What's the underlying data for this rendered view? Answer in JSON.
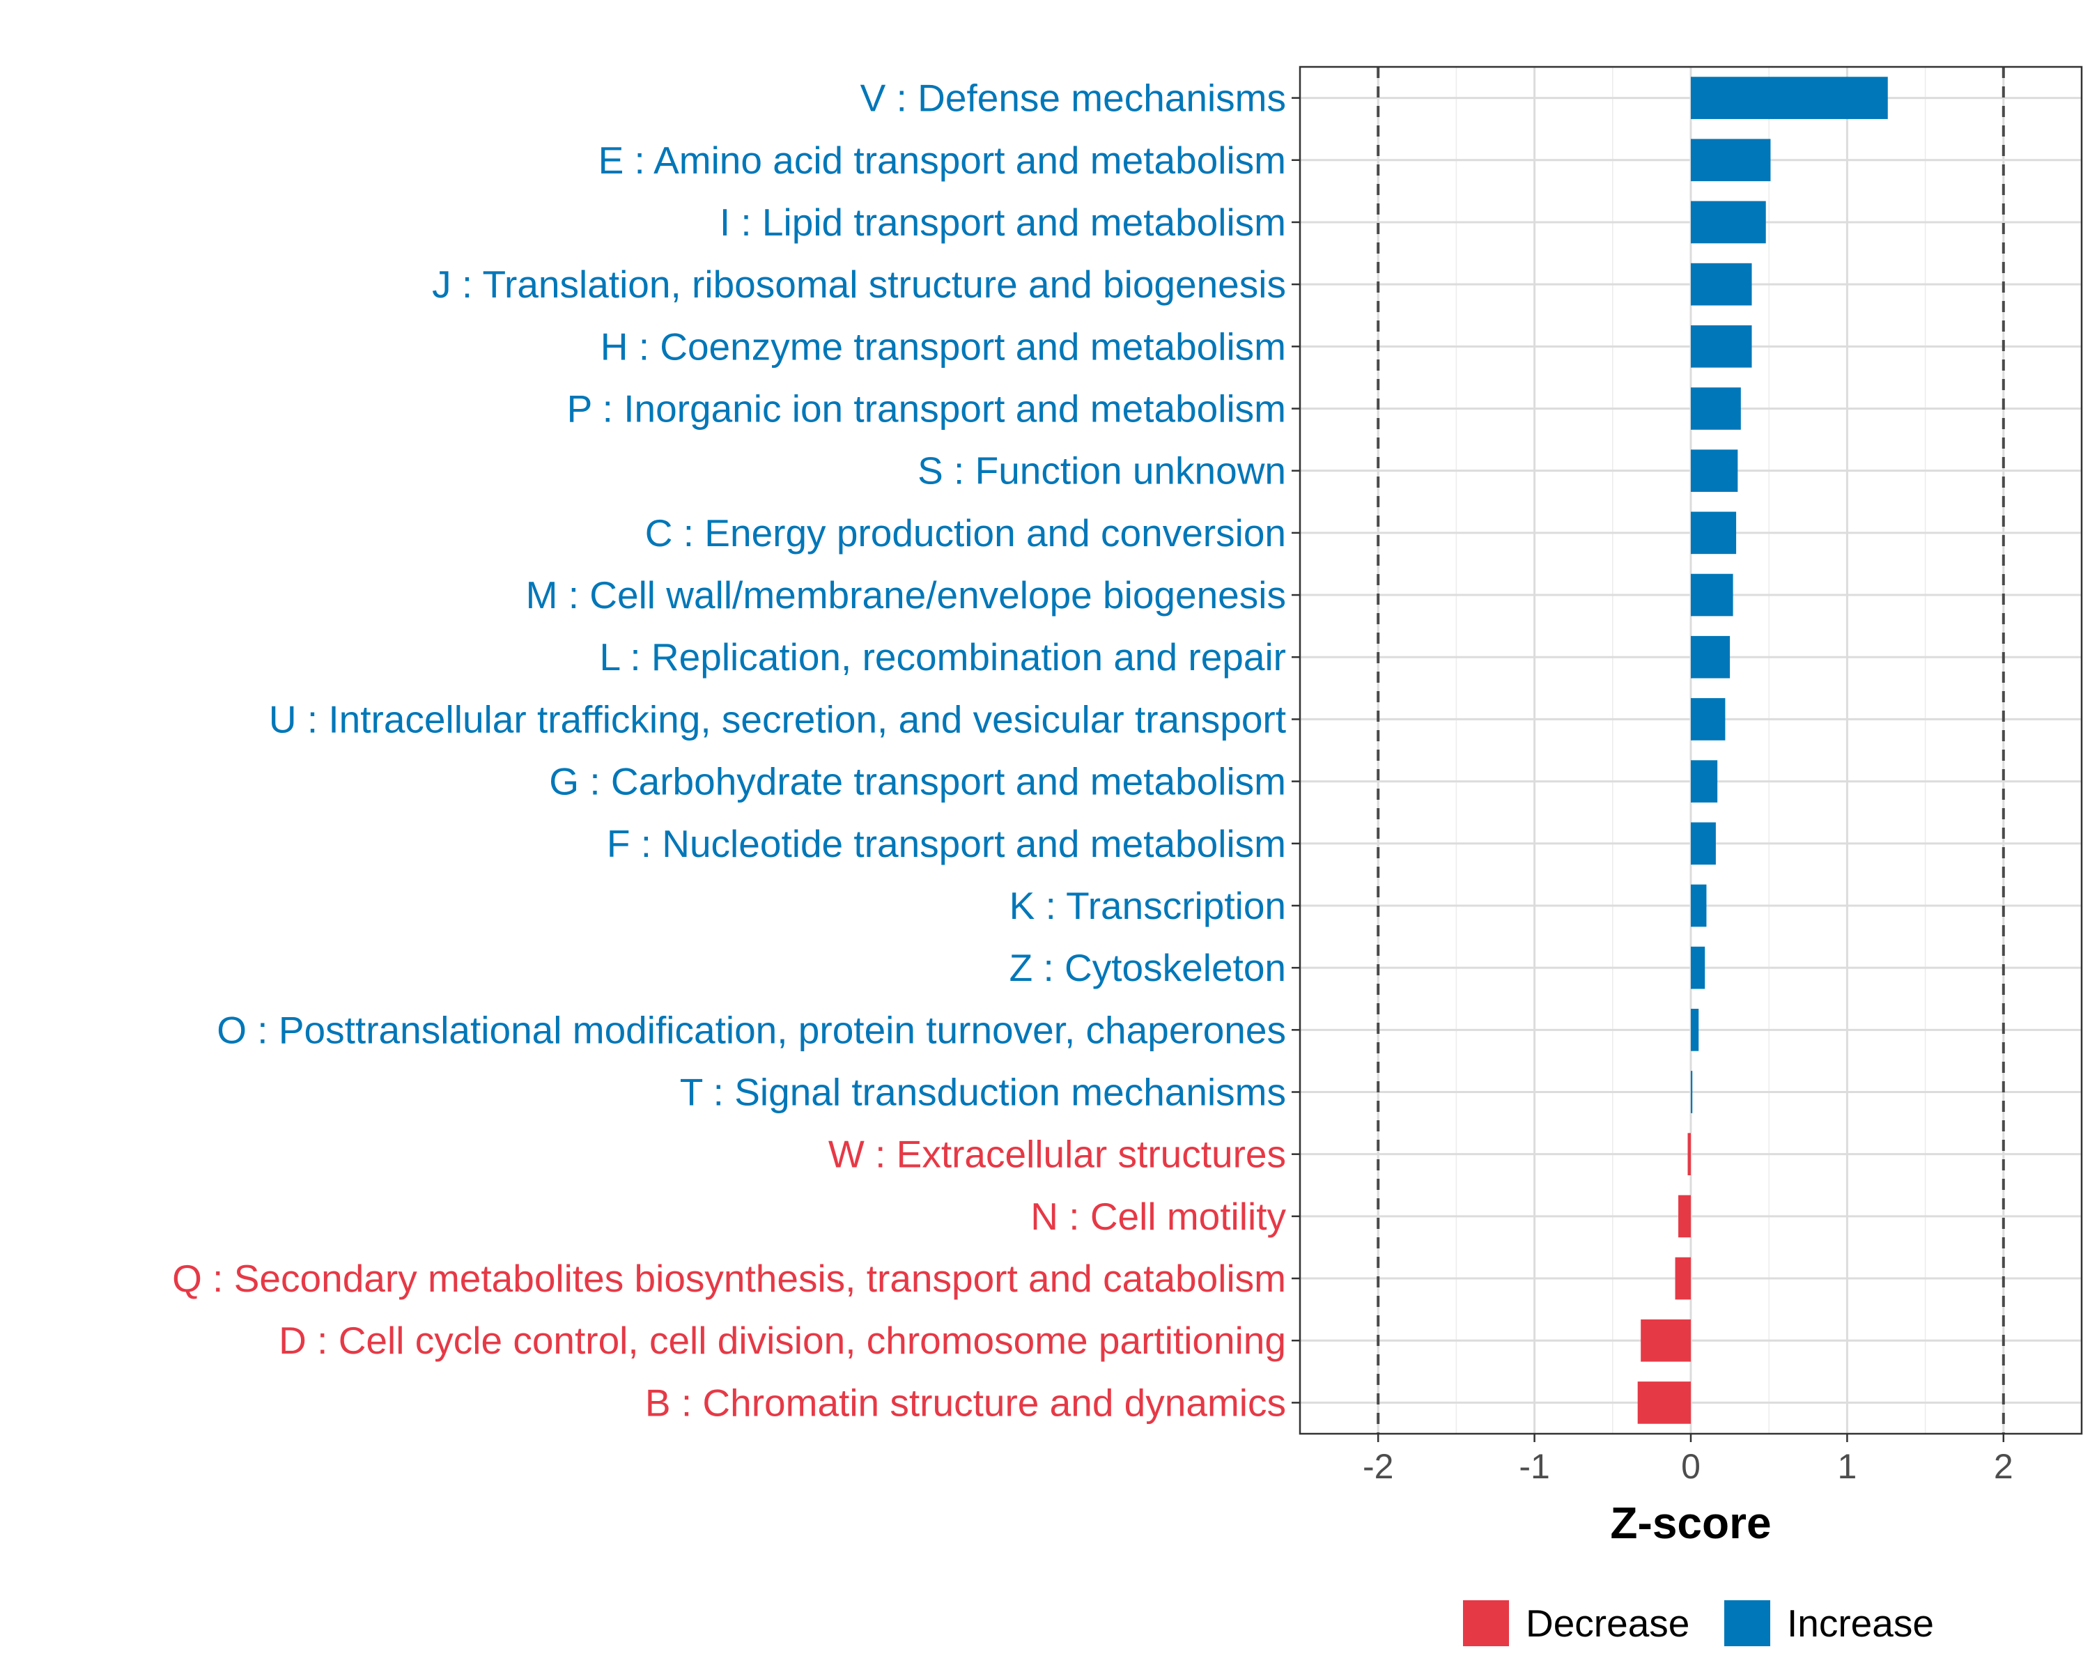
{
  "chart_data": {
    "type": "bar",
    "orientation": "horizontal",
    "xlabel": "Z-score",
    "xlim": [
      -2.5,
      2.5
    ],
    "xticks": [
      -2,
      -1,
      0,
      1,
      2
    ],
    "xtick_labels": [
      "-2",
      "-1",
      "0",
      "1",
      "2"
    ],
    "reference_lines": [
      -2,
      2
    ],
    "grid": true,
    "categories": [
      "V : Defense mechanisms",
      "E : Amino acid transport and metabolism",
      "I : Lipid transport and metabolism",
      "J : Translation, ribosomal structure and biogenesis",
      "H : Coenzyme transport and metabolism",
      "P : Inorganic ion transport and metabolism",
      "S : Function unknown",
      "C : Energy production and conversion",
      "M : Cell wall/membrane/envelope biogenesis",
      "L : Replication, recombination and repair",
      "U : Intracellular trafficking, secretion, and vesicular transport",
      "G : Carbohydrate transport and metabolism",
      "F : Nucleotide transport and metabolism",
      "K : Transcription",
      "Z : Cytoskeleton",
      "O : Posttranslational modification, protein turnover, chaperones",
      "T : Signal transduction mechanisms",
      "W : Extracellular structures",
      "N : Cell motility",
      "Q : Secondary metabolites biosynthesis, transport and catabolism",
      "D : Cell cycle control, cell division, chromosome partitioning",
      "B : Chromatin structure and dynamics"
    ],
    "values": [
      1.26,
      0.51,
      0.48,
      0.39,
      0.39,
      0.32,
      0.3,
      0.29,
      0.27,
      0.25,
      0.22,
      0.17,
      0.16,
      0.1,
      0.09,
      0.05,
      0.01,
      -0.02,
      -0.08,
      -0.1,
      -0.32,
      -0.34
    ],
    "groups": [
      "Increase",
      "Increase",
      "Increase",
      "Increase",
      "Increase",
      "Increase",
      "Increase",
      "Increase",
      "Increase",
      "Increase",
      "Increase",
      "Increase",
      "Increase",
      "Increase",
      "Increase",
      "Increase",
      "Increase",
      "Decrease",
      "Decrease",
      "Decrease",
      "Decrease",
      "Decrease"
    ],
    "legend": [
      {
        "name": "Decrease",
        "color": "#e63946"
      },
      {
        "name": "Increase",
        "color": "#0077b8"
      }
    ],
    "legend_position": "bottom",
    "colors": {
      "Increase": "#0077b8",
      "Decrease": "#e63946"
    }
  }
}
